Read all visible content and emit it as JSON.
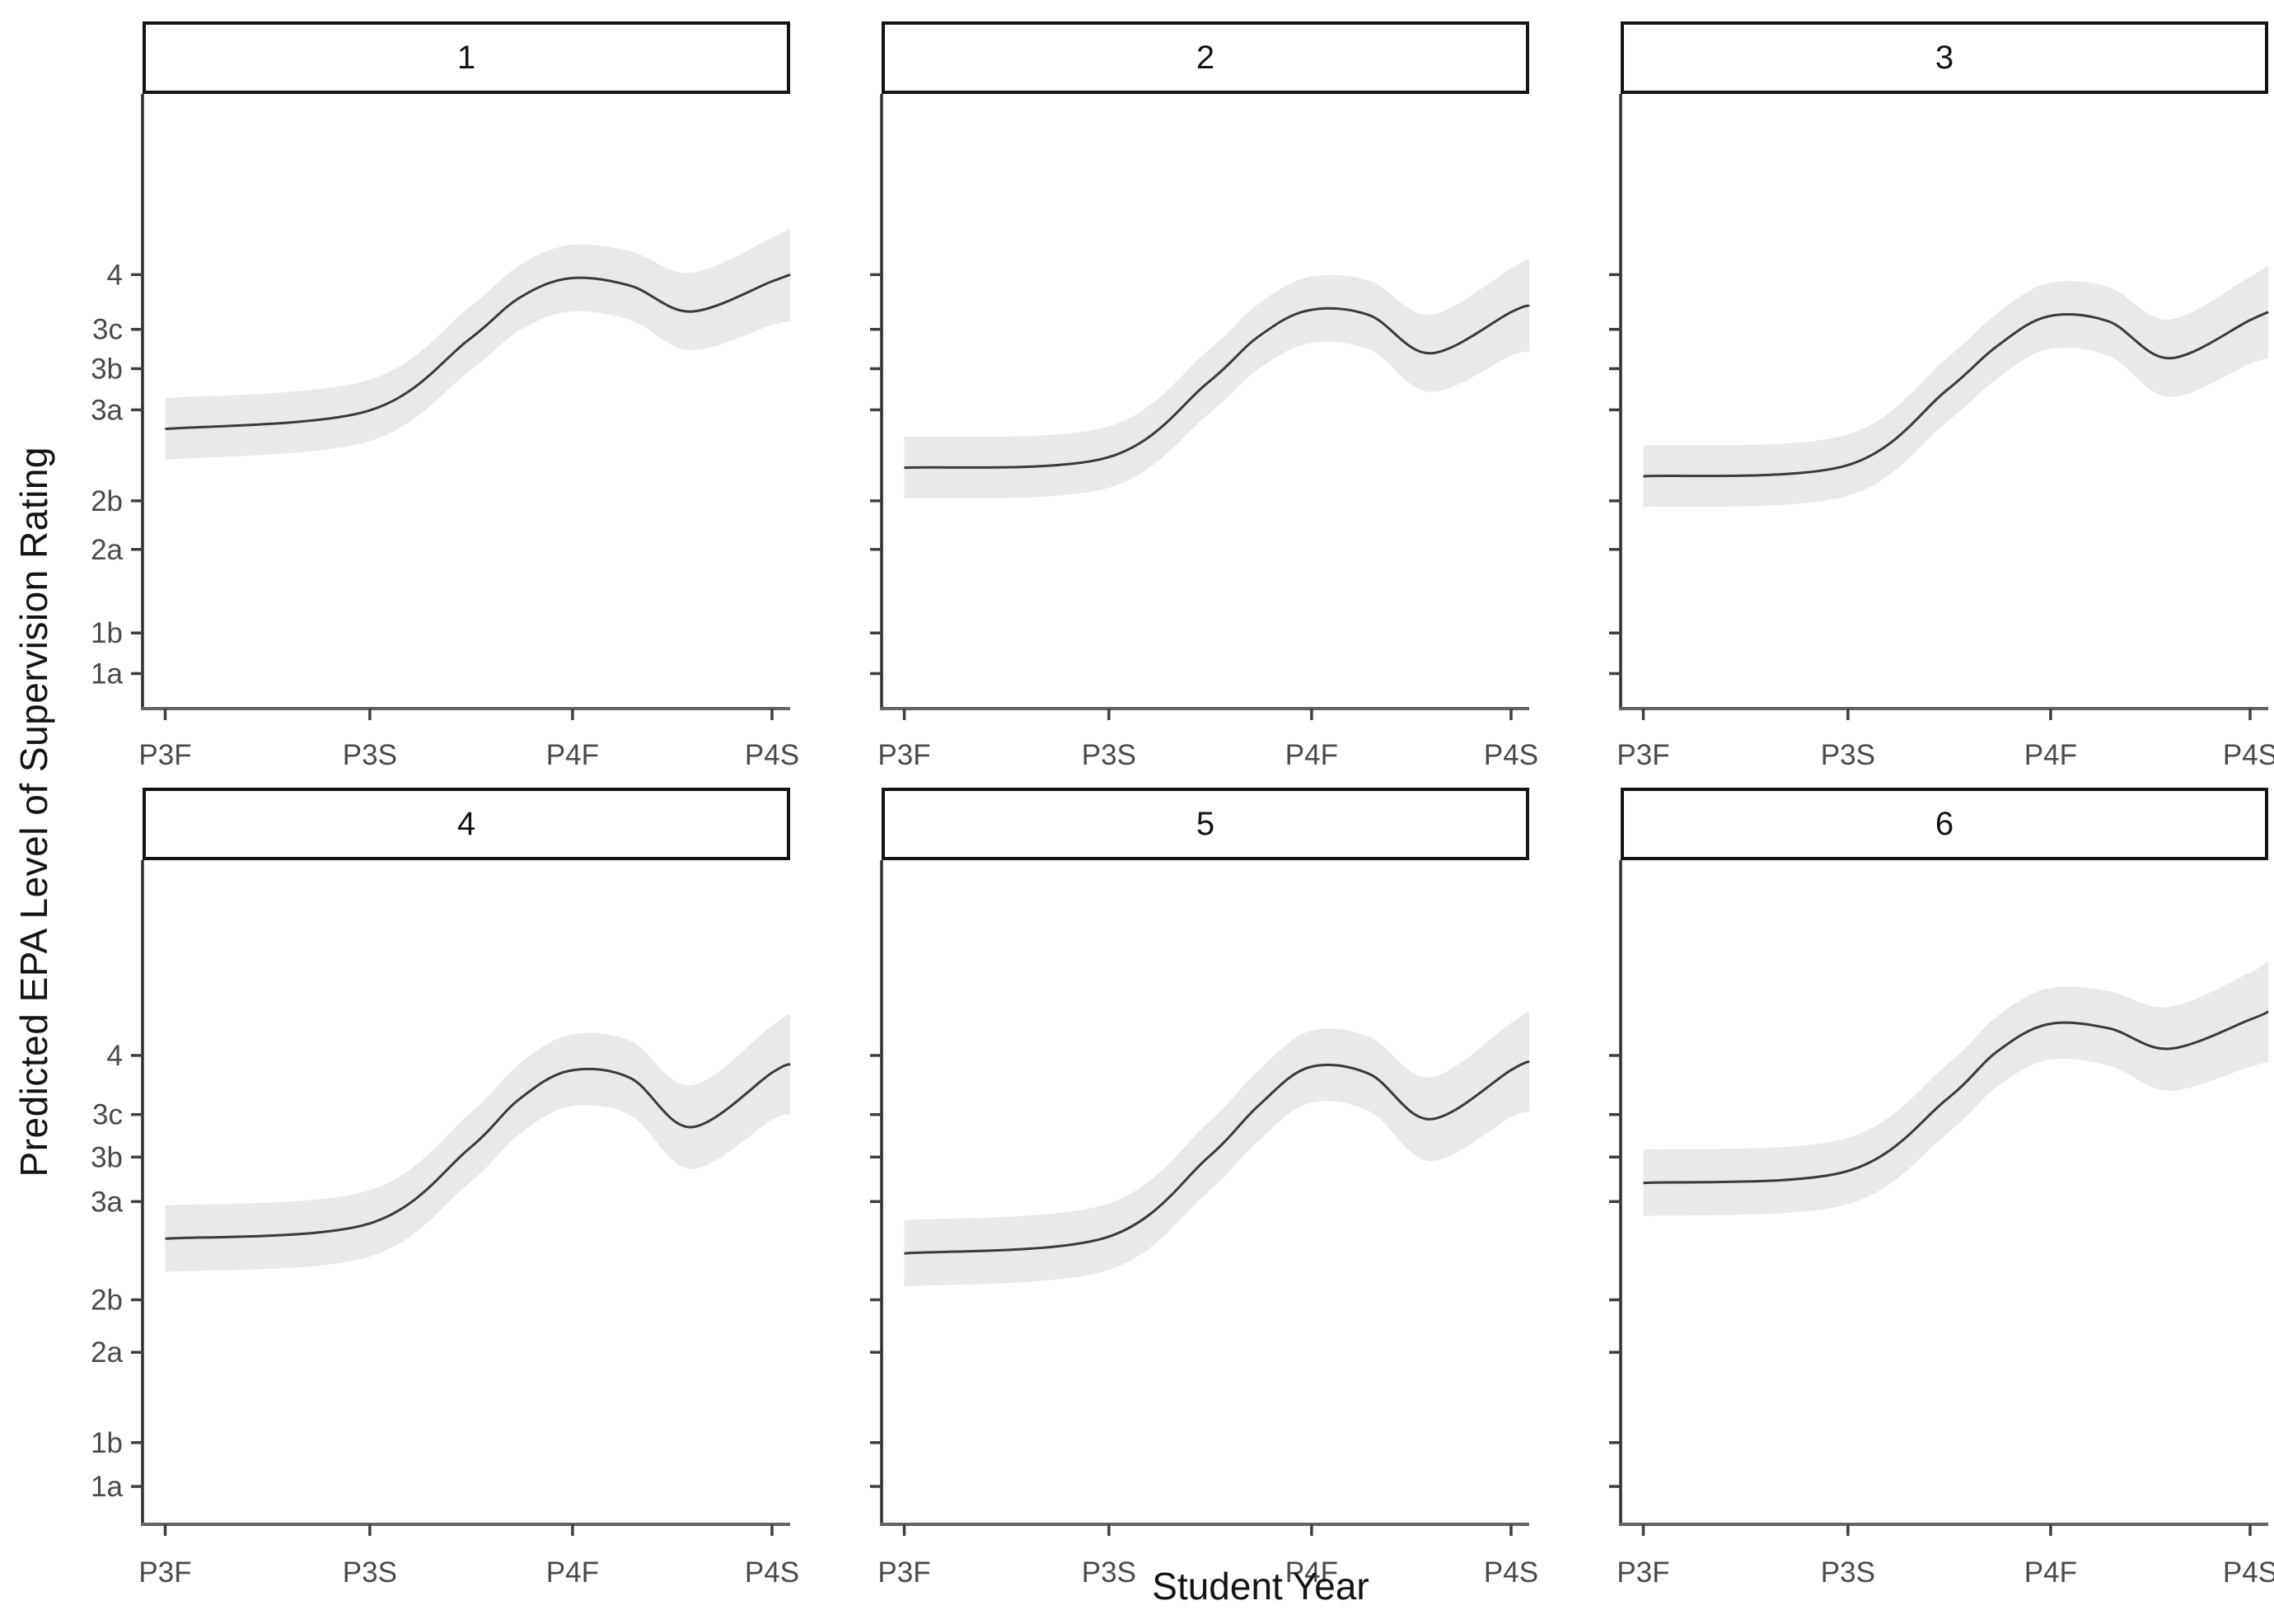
{
  "chart_data": {
    "type": "line",
    "faceted": true,
    "facet_rows": 2,
    "facet_cols": 3,
    "title": "",
    "xlabel": "Student Year",
    "ylabel": "Predicted EPA Level of Supervision Rating",
    "x_categories": [
      "P3F",
      "P3S",
      "P4F",
      "P4S"
    ],
    "x_tick_pos": [
      0.035,
      0.351,
      0.664,
      0.972
    ],
    "y_tick_labels": [
      "1a",
      "1b",
      "2a",
      "2b",
      "3a",
      "3b",
      "3c",
      "4"
    ],
    "y_tick_pos": [
      0.057,
      0.123,
      0.259,
      0.338,
      0.486,
      0.553,
      0.617,
      0.706
    ],
    "y_scale_note": "ordinal EPA supervision scale; tick positions given as fraction of panel height from the x-axis",
    "curve_x": [
      1.0,
      2.0,
      2.5,
      2.75,
      3.0,
      3.3,
      3.6,
      4.0,
      4.09
    ],
    "band_halfwidth": [
      0.05,
      0.05,
      0.052,
      0.053,
      0.054,
      0.056,
      0.063,
      0.071,
      0.076
    ],
    "series": [
      {
        "facet": "1",
        "y": [
          0.455,
          0.484,
          0.6,
          0.668,
          0.7,
          0.688,
          0.646,
          0.695,
          0.706
        ]
      },
      {
        "facet": "2",
        "y": [
          0.392,
          0.408,
          0.53,
          0.605,
          0.648,
          0.64,
          0.578,
          0.645,
          0.656
        ]
      },
      {
        "facet": "3",
        "y": [
          0.378,
          0.395,
          0.518,
          0.59,
          0.638,
          0.63,
          0.57,
          0.632,
          0.645
        ]
      },
      {
        "facet": "4",
        "y": [
          0.43,
          0.452,
          0.565,
          0.64,
          0.683,
          0.672,
          0.598,
          0.68,
          0.693
        ]
      },
      {
        "facet": "5",
        "y": [
          0.408,
          0.432,
          0.552,
          0.63,
          0.688,
          0.678,
          0.61,
          0.684,
          0.697
        ]
      },
      {
        "facet": "6",
        "y": [
          0.514,
          0.531,
          0.64,
          0.712,
          0.753,
          0.747,
          0.716,
          0.76,
          0.772
        ]
      }
    ],
    "line_color": "#3a3a3a",
    "band_color": "#e9e9e9",
    "axis_text_color": "#4a4a4a",
    "axis_line_color_y": "#2e2e2e",
    "axis_line_color_x": "#636363",
    "legend": "none",
    "grid": "off"
  }
}
